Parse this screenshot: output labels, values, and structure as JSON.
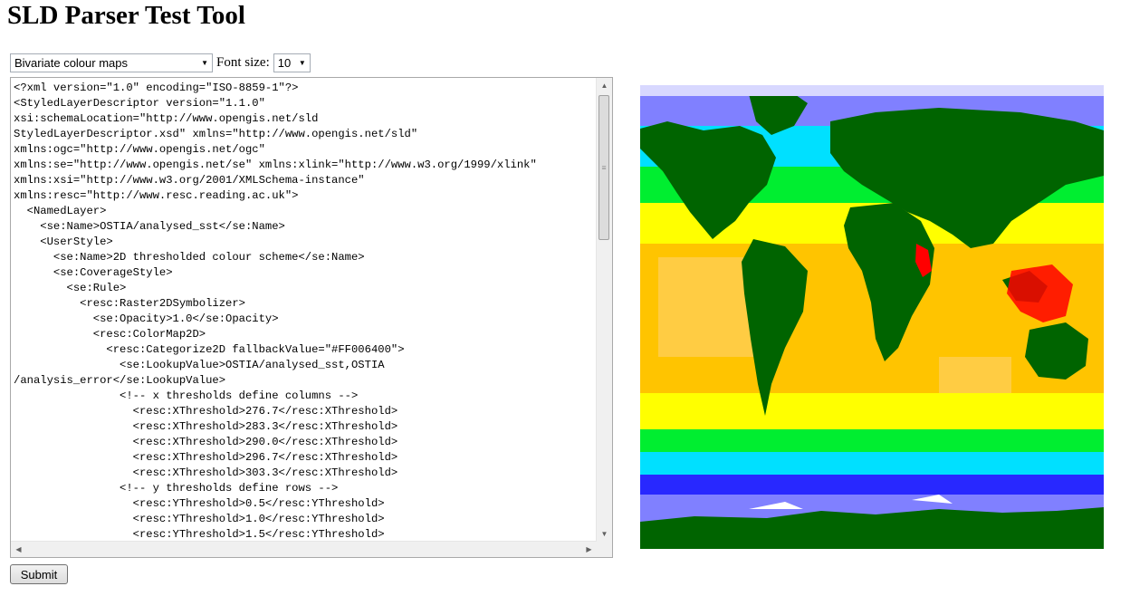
{
  "page": {
    "title": "SLD Parser Test Tool"
  },
  "controls": {
    "preset_selected": "Bivariate colour maps",
    "font_size_label": "Font size:",
    "font_size_selected": "10"
  },
  "editor": {
    "lines": [
      "<?xml version=\"1.0\" encoding=\"ISO-8859-1\"?>",
      "<StyledLayerDescriptor version=\"1.1.0\"",
      "xsi:schemaLocation=\"http://www.opengis.net/sld",
      "StyledLayerDescriptor.xsd\" xmlns=\"http://www.opengis.net/sld\"",
      "xmlns:ogc=\"http://www.opengis.net/ogc\"",
      "xmlns:se=\"http://www.opengis.net/se\" xmlns:xlink=\"http://www.w3.org/1999/xlink\"",
      "xmlns:xsi=\"http://www.w3.org/2001/XMLSchema-instance\"",
      "xmlns:resc=\"http://www.resc.reading.ac.uk\">",
      "  <NamedLayer>",
      "    <se:Name>OSTIA/analysed_sst</se:Name>",
      "    <UserStyle>",
      "      <se:Name>2D thresholded colour scheme</se:Name>",
      "      <se:CoverageStyle>",
      "        <se:Rule>",
      "          <resc:Raster2DSymbolizer>",
      "            <se:Opacity>1.0</se:Opacity>",
      "            <resc:ColorMap2D>",
      "              <resc:Categorize2D fallbackValue=\"#FF006400\">",
      "                <se:LookupValue>OSTIA/analysed_sst,OSTIA",
      "/analysis_error</se:LookupValue>",
      "                <!-- x thresholds define columns -->",
      "                  <resc:XThreshold>276.7</resc:XThreshold>",
      "                  <resc:XThreshold>283.3</resc:XThreshold>",
      "                  <resc:XThreshold>290.0</resc:XThreshold>",
      "                  <resc:XThreshold>296.7</resc:XThreshold>",
      "                  <resc:XThreshold>303.3</resc:XThreshold>",
      "                <!-- y thresholds define rows -->",
      "                  <resc:YThreshold>0.5</resc:YThreshold>",
      "                  <resc:YThreshold>1.0</resc:YThreshold>",
      "                  <resc:YThreshold>1.5</resc:YThreshold>"
    ]
  },
  "submit_label": "Submit",
  "colors": {
    "land": "#006400",
    "antarctic_ice": "#ffffff",
    "polar_blue": "#8080ff",
    "deep_blue": "#2828ff",
    "cyan": "#00e0ff",
    "green": "#00ee30",
    "yellow": "#ffff00",
    "gold": "#ffc400",
    "light_gold": "#ffd060",
    "red": "#ff0000"
  }
}
